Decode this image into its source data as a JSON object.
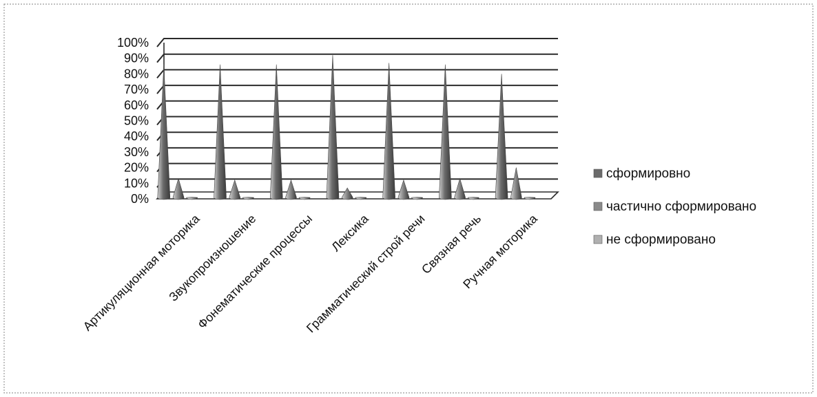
{
  "chart_data": {
    "type": "bar",
    "style": "3d-cone",
    "title": "",
    "xlabel": "",
    "ylabel": "",
    "ylim": [
      0,
      100
    ],
    "yticks": [
      "0%",
      "10%",
      "20%",
      "30%",
      "40%",
      "50%",
      "60%",
      "70%",
      "80%",
      "90%",
      "100%"
    ],
    "categories": [
      "Артикуляционная моторика",
      "Звукопроизношение",
      "Фонематические процессы",
      "Лексика",
      "Грамматический строй речи",
      "Связная речь",
      "Ручная моторика"
    ],
    "series": [
      {
        "name": "сформировно",
        "values": [
          86,
          86,
          86,
          92,
          87,
          86,
          80
        ],
        "color": "#6b6b6b"
      },
      {
        "name": "частично сформировано",
        "values": [
          13,
          12,
          12,
          7,
          12,
          13,
          20
        ],
        "color": "#8a8a8a"
      },
      {
        "name": "не сформировано",
        "values": [
          1,
          1,
          1,
          1,
          1,
          1,
          1
        ],
        "color": "#b0b0b0"
      }
    ],
    "grid": true,
    "legend": "right"
  }
}
